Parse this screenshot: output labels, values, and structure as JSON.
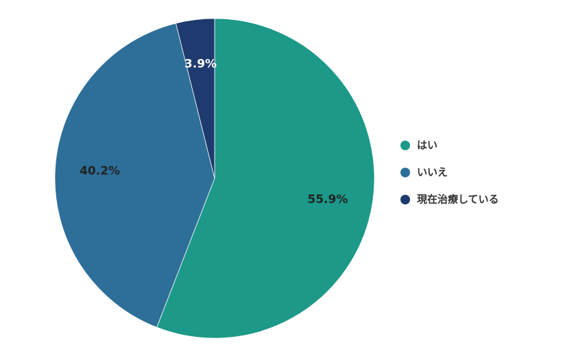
{
  "chart_data": {
    "type": "pie",
    "categories": [
      "はい",
      "いいえ",
      "現在治療している"
    ],
    "values": [
      55.9,
      40.2,
      3.9
    ],
    "value_labels": [
      "55.9%",
      "40.2%",
      "3.9%"
    ],
    "colors": [
      "#1c9988",
      "#2d6f98",
      "#1f3a6e"
    ],
    "legend": "right"
  }
}
